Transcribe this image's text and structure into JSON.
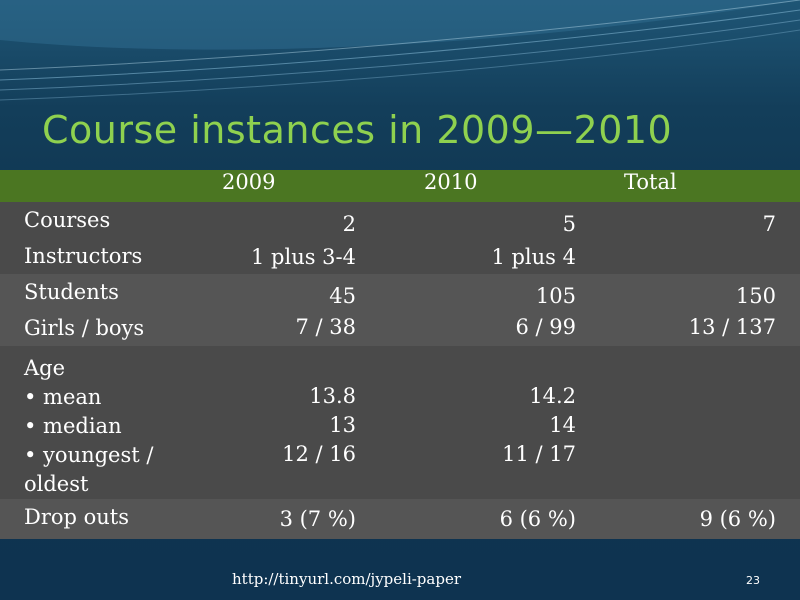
{
  "title": "Course instances in 2009—2010",
  "columns": [
    "2009",
    "2010",
    "Total"
  ],
  "rows": [
    {
      "label": "Courses",
      "y2009": "2",
      "y2010": "5",
      "total": "7"
    },
    {
      "label": "Instructors",
      "y2009": "1 plus 3-4",
      "y2010": "1 plus 4",
      "total": ""
    },
    {
      "label": "Students",
      "y2009": "45",
      "y2010": "105",
      "total": "150"
    },
    {
      "label": "Girls / boys",
      "y2009": "7 / 38",
      "y2010": "6 / 99",
      "total": "13 / 137"
    },
    {
      "label_lines": [
        "Age",
        "• mean",
        "• median",
        "• youngest /",
        "oldest"
      ],
      "y2009_lines": [
        "13.8",
        "13",
        "12 / 16"
      ],
      "y2010_lines": [
        "14.2",
        "14",
        "11 / 17"
      ]
    },
    {
      "label": "Drop outs",
      "y2009": "3 (7 %)",
      "y2010": "6 (6 %)",
      "total": "9 (6 %)"
    }
  ],
  "footer": {
    "url": "http://tinyurl.com/jypeli-paper",
    "page": "23"
  },
  "colors": {
    "title": "#8fd14f",
    "header_bar": "#4b7622",
    "row_bg": "#4a4a4a",
    "background": "#0f3a55"
  }
}
